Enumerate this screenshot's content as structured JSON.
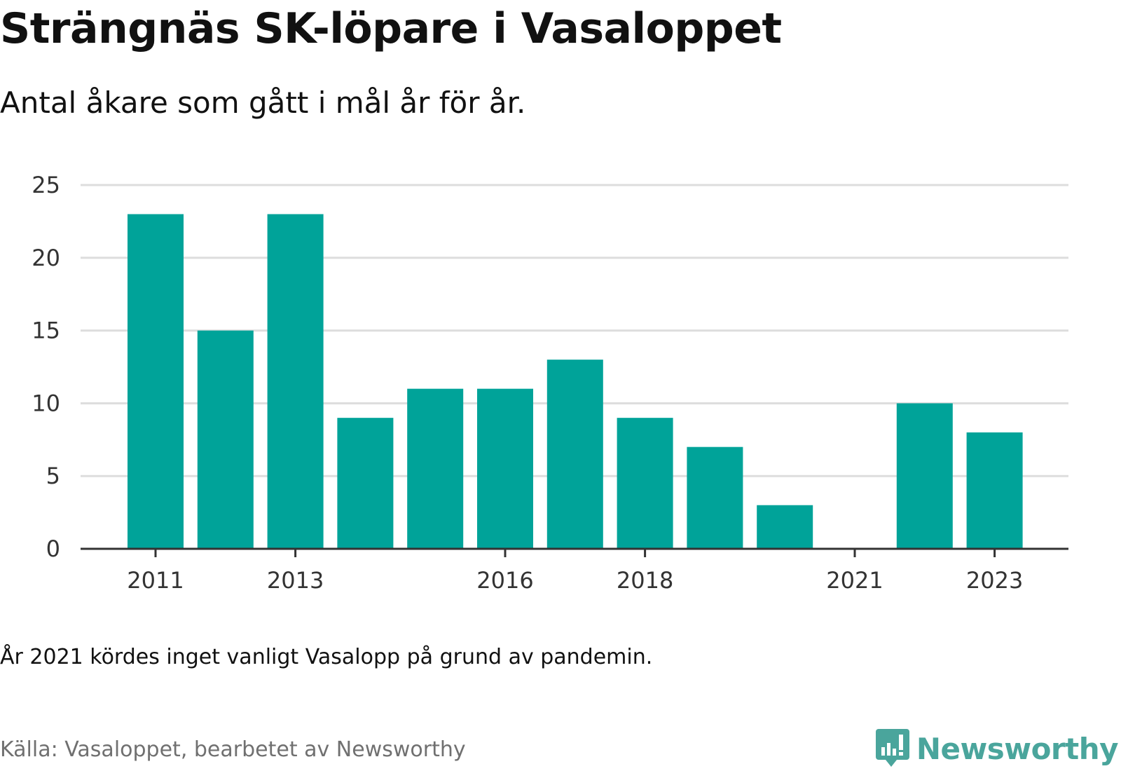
{
  "header": {
    "title": "Strängnäs SK-löpare i Vasaloppet",
    "subtitle": "Antal åkare som gått i mål år för år."
  },
  "footer": {
    "note": "År 2021 kördes inget vanligt Vasalopp på grund av pandemin.",
    "source": "Källa: Vasaloppet, bearbetet av Newsworthy",
    "brand_name": "Newsworthy",
    "brand_icon": "newsworthy-logo-icon"
  },
  "colors": {
    "bar": "#00a399",
    "gridline": "#dddddd",
    "axis": "#333333",
    "brand": "#4aa59c"
  },
  "chart_data": {
    "type": "bar",
    "categories": [
      "2011",
      "2012",
      "2013",
      "2014",
      "2015",
      "2016",
      "2017",
      "2018",
      "2019",
      "2020",
      "2021",
      "2022",
      "2023"
    ],
    "values": [
      23,
      15,
      23,
      9,
      11,
      11,
      13,
      9,
      7,
      3,
      0,
      10,
      8
    ],
    "x_tick_labels": [
      "2011",
      "2013",
      "2016",
      "2018",
      "2021",
      "2023"
    ],
    "y_ticks": [
      0,
      5,
      10,
      15,
      20,
      25
    ],
    "ylim": [
      0,
      25
    ],
    "title": "Strängnäs SK-löpare i Vasaloppet",
    "xlabel": "",
    "ylabel": "",
    "grid": true,
    "legend": "none"
  }
}
